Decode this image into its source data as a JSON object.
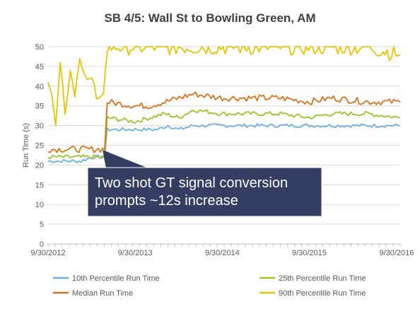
{
  "chart_data": {
    "type": "line",
    "title": "SB 4/5: Wall St to Bowling Green, AM",
    "ylabel": "Run Time (s)",
    "xlabel": "",
    "ylim": [
      0,
      50
    ],
    "y_ticks": [
      "0",
      "5",
      "10",
      "15",
      "20",
      "25",
      "30",
      "35",
      "40",
      "45",
      "50"
    ],
    "x_tick_labels": [
      "9/30/2012",
      "9/30/2013",
      "9/30/2014",
      "9/30/2015",
      "9/30/2016"
    ],
    "x_unit": "date",
    "x_range": [
      "2012-09-30",
      "2016-10-15"
    ],
    "grid": "horizontal",
    "legend_position": "bottom",
    "series": [
      {
        "name": "10th Percentile Run Time",
        "color": "#6DAFE3",
        "points": [
          [
            "2012-09-30",
            21
          ],
          [
            "2013-02-15",
            21
          ],
          [
            "2013-04-01",
            22
          ],
          [
            "2013-05-25",
            22
          ],
          [
            "2013-06-05",
            29
          ],
          [
            "2013-09-30",
            29
          ],
          [
            "2014-01-01",
            29
          ],
          [
            "2014-02-15",
            30
          ],
          [
            "2014-04-01",
            29
          ],
          [
            "2014-06-01",
            30
          ],
          [
            "2014-09-30",
            30
          ],
          [
            "2015-01-01",
            30
          ],
          [
            "2015-06-01",
            30
          ],
          [
            "2015-09-30",
            30
          ],
          [
            "2016-01-01",
            30
          ],
          [
            "2016-06-01",
            30
          ],
          [
            "2016-10-15",
            30
          ]
        ]
      },
      {
        "name": "25th Percentile Run Time",
        "color": "#9BC32A",
        "points": [
          [
            "2012-09-30",
            22
          ],
          [
            "2013-02-15",
            22
          ],
          [
            "2013-04-01",
            22
          ],
          [
            "2013-05-25",
            22
          ],
          [
            "2013-06-05",
            32
          ],
          [
            "2013-09-30",
            31
          ],
          [
            "2013-12-01",
            32
          ],
          [
            "2014-02-01",
            33
          ],
          [
            "2014-04-01",
            32
          ],
          [
            "2014-06-01",
            34
          ],
          [
            "2014-09-30",
            33
          ],
          [
            "2015-01-01",
            33
          ],
          [
            "2015-06-01",
            33
          ],
          [
            "2015-09-30",
            32
          ],
          [
            "2016-01-01",
            33
          ],
          [
            "2016-06-01",
            33
          ],
          [
            "2016-10-15",
            32
          ]
        ]
      },
      {
        "name": "Median Run Time",
        "color": "#D9721C",
        "points": [
          [
            "2012-09-30",
            24
          ],
          [
            "2013-02-15",
            24
          ],
          [
            "2013-04-01",
            24
          ],
          [
            "2013-05-25",
            24
          ],
          [
            "2013-06-05",
            36
          ],
          [
            "2013-09-30",
            35
          ],
          [
            "2013-12-01",
            35
          ],
          [
            "2014-02-01",
            36
          ],
          [
            "2014-04-01",
            37
          ],
          [
            "2014-06-01",
            38
          ],
          [
            "2014-09-30",
            37
          ],
          [
            "2015-01-01",
            37
          ],
          [
            "2015-06-01",
            37
          ],
          [
            "2015-09-30",
            36
          ],
          [
            "2016-01-01",
            37
          ],
          [
            "2016-06-01",
            36
          ],
          [
            "2016-10-15",
            36
          ]
        ]
      },
      {
        "name": "90th Percentile Run Time",
        "color": "#E9C400",
        "points": [
          [
            "2012-09-30",
            41
          ],
          [
            "2012-10-15",
            38
          ],
          [
            "2012-11-01",
            30
          ],
          [
            "2012-11-20",
            46
          ],
          [
            "2012-12-10",
            35
          ],
          [
            "2013-01-01",
            44
          ],
          [
            "2013-01-20",
            38
          ],
          [
            "2013-02-10",
            47
          ],
          [
            "2013-03-01",
            42
          ],
          [
            "2013-04-01",
            40
          ],
          [
            "2013-05-01",
            37
          ],
          [
            "2013-05-20",
            38
          ],
          [
            "2013-06-05",
            50
          ],
          [
            "2013-09-30",
            50
          ],
          [
            "2014-06-01",
            50
          ],
          [
            "2015-06-01",
            50
          ],
          [
            "2016-06-01",
            50
          ],
          [
            "2016-10-15",
            48
          ]
        ]
      }
    ],
    "annotation": {
      "text_lines": [
        "Two shot GT signal conversion",
        "prompts ~12s increase"
      ]
    }
  }
}
